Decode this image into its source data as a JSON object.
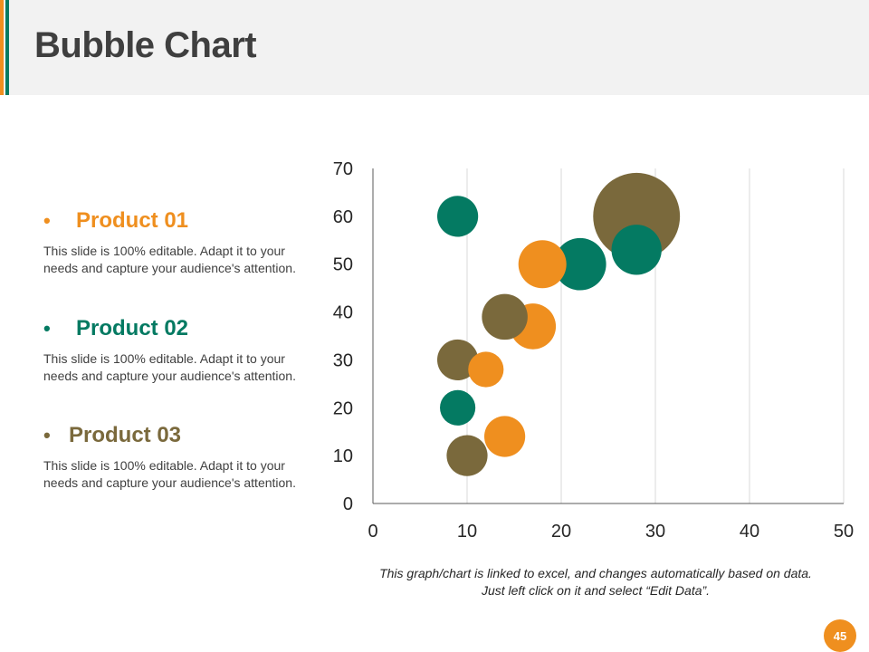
{
  "header": {
    "title": "Bubble Chart"
  },
  "products": [
    {
      "name": "Product 01",
      "color": "#ef8f1f",
      "description": "This slide is 100% editable. Adapt it to your needs and capture your audience's attention."
    },
    {
      "name": "Product 02",
      "color": "#047a62",
      "description": "This slide is 100% editable. Adapt it to your needs and capture your audience's attention."
    },
    {
      "name": "Product 03",
      "color": "#7a693c",
      "description": "This slide is 100% editable. Adapt it to your needs and capture your audience's attention."
    }
  ],
  "chart_data": {
    "type": "bubble",
    "xlim": [
      0,
      50
    ],
    "ylim": [
      0,
      70
    ],
    "x_ticks": [
      0,
      10,
      20,
      30,
      40,
      50
    ],
    "y_ticks": [
      0,
      10,
      20,
      30,
      40,
      50,
      60,
      70
    ],
    "grid": "vertical",
    "series": [
      {
        "name": "Product 01",
        "color": "#ef8f1f",
        "points": [
          {
            "x": 14,
            "y": 14,
            "size": 4
          },
          {
            "x": 12,
            "y": 28,
            "size": 3
          },
          {
            "x": 17,
            "y": 37,
            "size": 5
          },
          {
            "x": 18,
            "y": 50,
            "size": 5.5
          }
        ]
      },
      {
        "name": "Product 02",
        "color": "#047a62",
        "points": [
          {
            "x": 9,
            "y": 20,
            "size": 3
          },
          {
            "x": 9,
            "y": 60,
            "size": 4
          },
          {
            "x": 22,
            "y": 50,
            "size": 6.5
          },
          {
            "x": 28,
            "y": 53,
            "size": 6
          }
        ]
      },
      {
        "name": "Product 03",
        "color": "#7a693c",
        "points": [
          {
            "x": 10,
            "y": 10,
            "size": 4
          },
          {
            "x": 9,
            "y": 30,
            "size": 4
          },
          {
            "x": 14,
            "y": 39,
            "size": 5
          },
          {
            "x": 28,
            "y": 60,
            "size": 18
          }
        ]
      }
    ]
  },
  "footer": {
    "note_line1": "This graph/chart is linked to excel, and changes automatically based on data.",
    "note_line2": "Just left click on it and select “Edit Data”.",
    "page_number": "45"
  }
}
